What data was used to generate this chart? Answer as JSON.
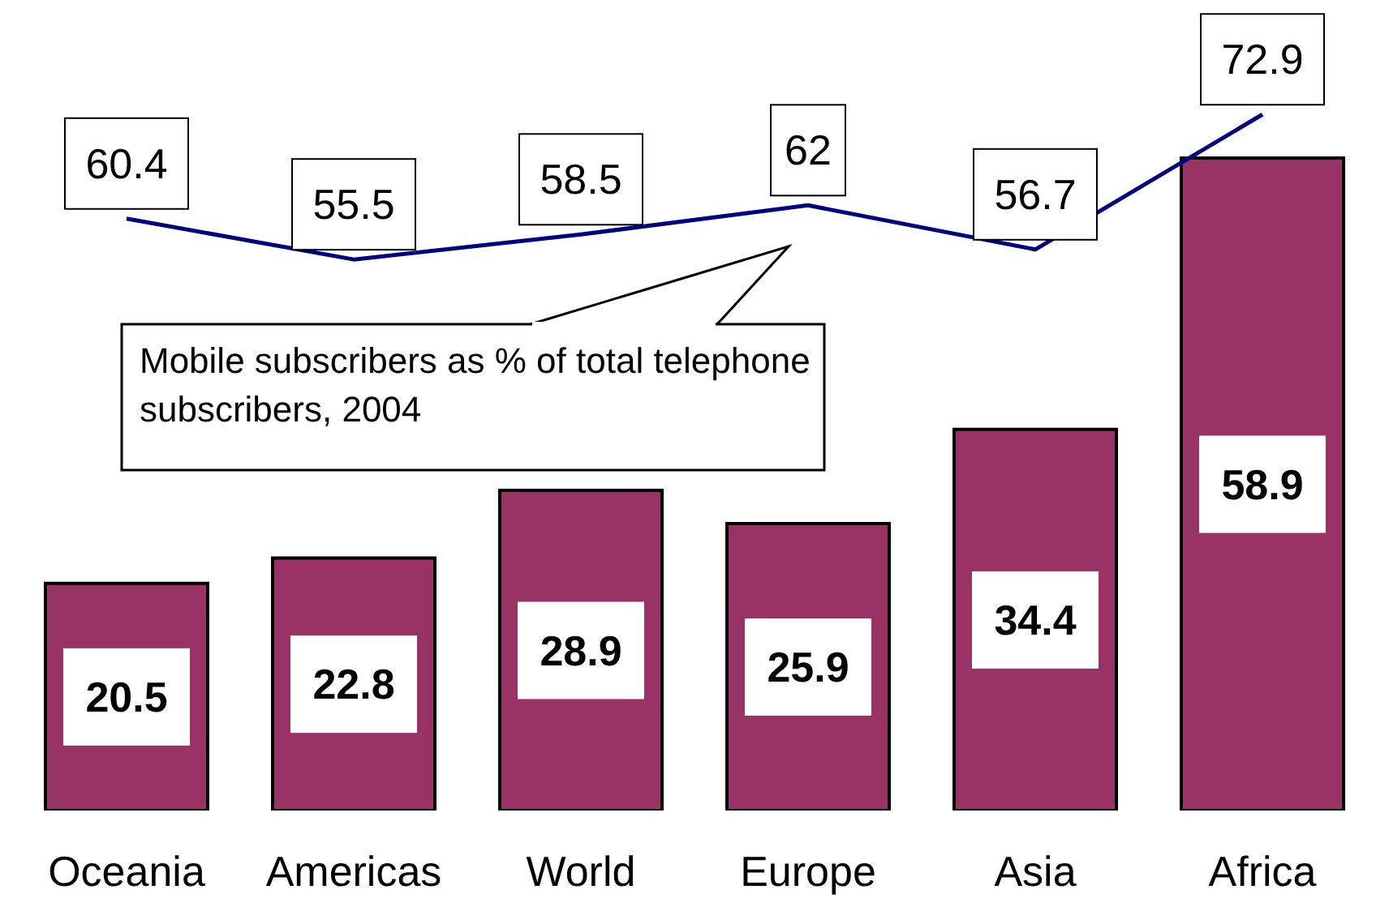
{
  "chart_data": {
    "type": "bar",
    "categories": [
      "Oceania",
      "Americas",
      "World",
      "Europe",
      "Asia",
      "Africa"
    ],
    "series": [
      {
        "color": "#993366",
        "values": [
          20.5,
          22.8,
          28.9,
          25.9,
          34.4,
          58.9
        ]
      },
      {
        "type": "line",
        "axis": "y2",
        "color": "#000080",
        "values": [
          60.4,
          55.5,
          58.5,
          62,
          56.7,
          72.9
        ]
      }
    ],
    "ylim": [
      0,
      72
    ],
    "tick_labels": "x",
    "data_labels": true,
    "annotations": [
      "Mobile subscribers as % of total telephone subscribers, 2004"
    ]
  }
}
